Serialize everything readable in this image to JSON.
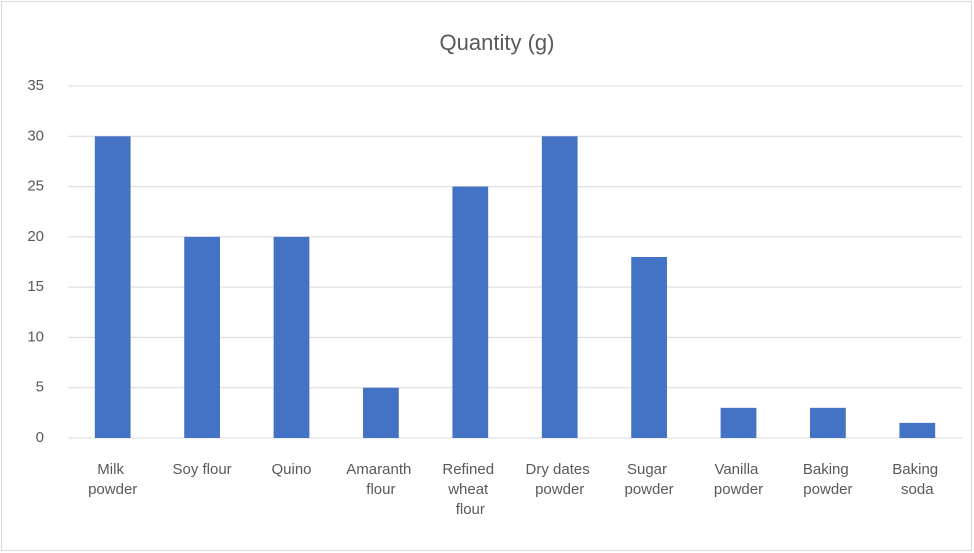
{
  "chart_data": {
    "type": "bar",
    "title": "Quantity (g)",
    "categories": [
      "Milk powder",
      "Soy flour",
      "Quino",
      "Amaranth flour",
      "Refined wheat flour",
      "Dry dates powder",
      "Sugar powder",
      "Vanilla powder",
      "Baking powder",
      "Baking soda"
    ],
    "values": [
      30,
      20,
      20,
      5,
      25,
      30,
      18,
      3,
      3,
      1.5
    ],
    "color": "#4472c4",
    "ylim": [
      0,
      35
    ],
    "yticks": [
      0,
      5,
      10,
      15,
      20,
      25,
      30,
      35
    ],
    "grid": true
  }
}
